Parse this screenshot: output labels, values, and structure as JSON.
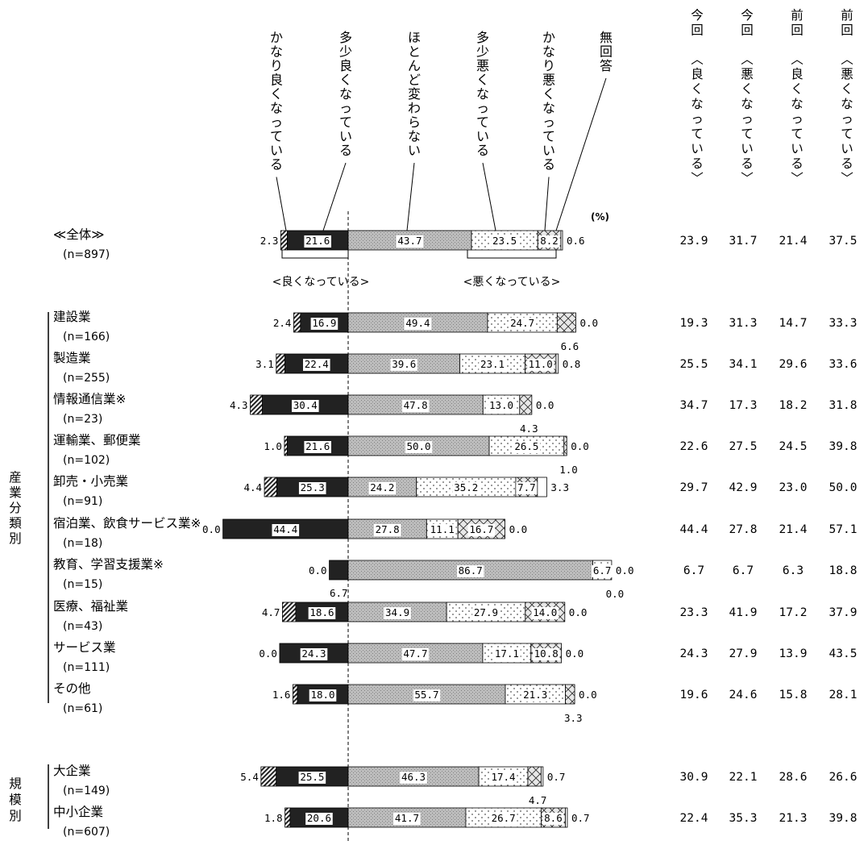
{
  "chart_data": {
    "type": "bar",
    "stacked": true,
    "orientation": "horizontal",
    "unit_label": "(%)",
    "series": [
      {
        "name": "かなり良くなっている",
        "color": "#cfcfcf",
        "pattern": "diag"
      },
      {
        "name": "多少良くなっている",
        "color": "#222222",
        "pattern": "solid"
      },
      {
        "name": "ほとんど変わらない",
        "color": "#b9b9b9",
        "pattern": "cross"
      },
      {
        "name": "多少悪くなっている",
        "color": "#f4f4f4",
        "pattern": "dots"
      },
      {
        "name": "かなり悪くなっている",
        "color": "#e8e8e8",
        "pattern": "xhatch"
      },
      {
        "name": "無回答",
        "color": "#ffffff",
        "pattern": "none"
      }
    ],
    "right_headers": [
      "今回〈良くなっている〉",
      "今回〈悪くなっている〉",
      "前回〈良くなっている〉",
      "前回〈悪くなっている〉"
    ],
    "brace_labels": {
      "good": "<良くなっている>",
      "bad": "<悪くなっている>"
    },
    "group_labels": {
      "industry": "産業分類別",
      "size": "規模別"
    },
    "rows": [
      {
        "label": "≪全体≫",
        "n": "(n=897)",
        "group": "all",
        "values": [
          2.3,
          21.6,
          43.7,
          23.5,
          8.2,
          0.6
        ],
        "right": [
          "23.9",
          "31.7",
          "21.4",
          "37.5"
        ]
      },
      {
        "label": "建設業",
        "n": "(n=166)",
        "group": "industry",
        "values": [
          2.4,
          16.9,
          49.4,
          24.7,
          6.6,
          0.0
        ],
        "right": [
          "19.3",
          "31.3",
          "14.7",
          "33.3"
        ]
      },
      {
        "label": "製造業",
        "n": "(n=255)",
        "group": "industry",
        "values": [
          3.1,
          22.4,
          39.6,
          23.1,
          11.0,
          0.8
        ],
        "right": [
          "25.5",
          "34.1",
          "29.6",
          "33.6"
        ]
      },
      {
        "label": "情報通信業※",
        "n": "(n=23)",
        "group": "industry",
        "values": [
          4.3,
          30.4,
          47.8,
          13.0,
          4.3,
          0.0
        ],
        "right": [
          "34.7",
          "17.3",
          "18.2",
          "31.8"
        ]
      },
      {
        "label": "運輸業、郵便業",
        "n": "(n=102)",
        "group": "industry",
        "values": [
          1.0,
          21.6,
          50.0,
          26.5,
          1.0,
          0.0
        ],
        "right": [
          "22.6",
          "27.5",
          "24.5",
          "39.8"
        ]
      },
      {
        "label": "卸売・小売業",
        "n": "(n=91)",
        "group": "industry",
        "values": [
          4.4,
          25.3,
          24.2,
          35.2,
          7.7,
          3.3
        ],
        "right": [
          "29.7",
          "42.9",
          "23.0",
          "50.0"
        ]
      },
      {
        "label": "宿泊業、飲食サービス業※",
        "n": "(n=18)",
        "group": "industry",
        "values": [
          0.0,
          44.4,
          27.8,
          11.1,
          16.7,
          0.0
        ],
        "right": [
          "44.4",
          "27.8",
          "21.4",
          "57.1"
        ]
      },
      {
        "label": "教育、学習支援業※",
        "n": "(n=15)",
        "group": "industry",
        "values": [
          0.0,
          6.7,
          86.7,
          6.7,
          0.0,
          0.0
        ],
        "right": [
          "6.7",
          "6.7",
          "6.3",
          "18.8"
        ]
      },
      {
        "label": "医療、福祉業",
        "n": "(n=43)",
        "group": "industry",
        "values": [
          4.7,
          18.6,
          34.9,
          27.9,
          14.0,
          0.0
        ],
        "right": [
          "23.3",
          "41.9",
          "17.2",
          "37.9"
        ]
      },
      {
        "label": "サービス業",
        "n": "(n=111)",
        "group": "industry",
        "values": [
          0.0,
          24.3,
          47.7,
          17.1,
          10.8,
          0.0
        ],
        "right": [
          "24.3",
          "27.9",
          "13.9",
          "43.5"
        ]
      },
      {
        "label": "その他",
        "n": "(n=61)",
        "group": "industry",
        "values": [
          1.6,
          18.0,
          55.7,
          21.3,
          3.3,
          0.0
        ],
        "right": [
          "19.6",
          "24.6",
          "15.8",
          "28.1"
        ]
      },
      {
        "label": "大企業",
        "n": "(n=149)",
        "group": "size",
        "values": [
          5.4,
          25.5,
          46.3,
          17.4,
          4.7,
          0.7
        ],
        "right": [
          "30.9",
          "22.1",
          "28.6",
          "26.6"
        ]
      },
      {
        "label": "中小企業",
        "n": "(n=607)",
        "group": "size",
        "values": [
          1.8,
          20.6,
          41.7,
          26.7,
          8.6,
          0.7
        ],
        "right": [
          "22.4",
          "35.3",
          "21.3",
          "39.8"
        ]
      }
    ]
  }
}
